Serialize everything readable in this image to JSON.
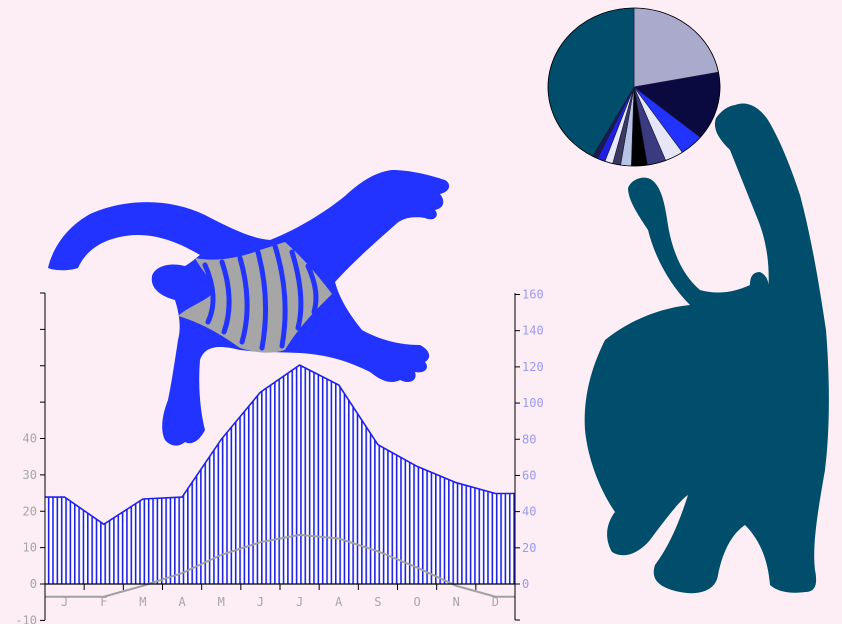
{
  "chart_data": [
    {
      "type": "line",
      "subtype": "climate-diagram",
      "categories": [
        "J",
        "F",
        "M",
        "A",
        "M",
        "J",
        "J",
        "A",
        "S",
        "O",
        "N",
        "D"
      ],
      "left_axis": {
        "ylim": [
          -10,
          40
        ],
        "ticks": [
          -10,
          0,
          10,
          20,
          30,
          40
        ]
      },
      "right_axis": {
        "ylim": [
          0,
          160
        ],
        "ticks": [
          0,
          20,
          40,
          60,
          80,
          100,
          120,
          140,
          160
        ]
      },
      "series": [
        {
          "axis": "left",
          "color": "#a0a0a0",
          "values": [
            -3.5,
            -3.5,
            -0.5,
            3,
            8,
            11.5,
            13.5,
            12.5,
            9,
            4.5,
            -0.5,
            -3.5
          ]
        },
        {
          "axis": "right",
          "color": "#2020ee",
          "fill": "vertical-hatch",
          "values": [
            48,
            33,
            47,
            48,
            80,
            106,
            121,
            110,
            77,
            65,
            56,
            50
          ]
        }
      ],
      "grid": false
    },
    {
      "type": "pie",
      "values": [
        22,
        14,
        4.5,
        3.5,
        3.5,
        3,
        2,
        1.5,
        1.5,
        1.5,
        1,
        42
      ],
      "colors": [
        "#aaaacc",
        "#0a0a40",
        "#2233ff",
        "#e6e6f6",
        "#3a3a80",
        "#000000",
        "#b8c4e4",
        "#3a3a60",
        "#e8e8ff",
        "#2020e0",
        "#1a1a50",
        "#004e6c"
      ]
    }
  ],
  "decor": {
    "swimmer": "blue-swimmer-figure",
    "player": "teal-crouching-figure"
  }
}
